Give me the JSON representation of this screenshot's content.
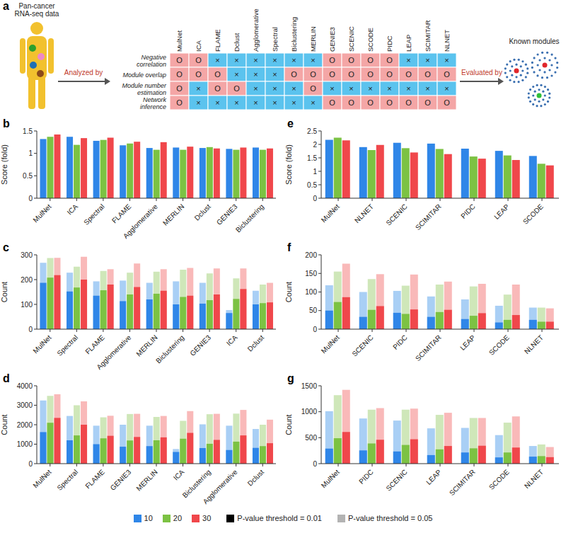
{
  "diagram": {
    "panel": "a",
    "source": "Pan-cancer RNA-seq data",
    "arrow_left": "Analyzed by",
    "arrow_right": "Evaluated by",
    "target": "Known modules",
    "methods": [
      "MulNet",
      "ICA",
      "FLAME",
      "Dclust",
      "Agglomerative",
      "Spectral",
      "Biclustering",
      "MERLIN",
      "GENIE3",
      "SCENIC",
      "SCODE",
      "PIDC",
      "LEAP",
      "SCIMITAR",
      "NLNET"
    ],
    "cell_colors": {
      "O": "#f4a6a6",
      "×": "#5bc3ee"
    },
    "rows": [
      {
        "name": "Negative correlation",
        "cells": [
          "O",
          "O",
          "×",
          "×",
          "×",
          "×",
          "×",
          "×",
          "O",
          "O",
          "O",
          "O",
          "×",
          "×",
          "×"
        ]
      },
      {
        "name": "Module overlap",
        "cells": [
          "O",
          "O",
          "O",
          "×",
          "×",
          "×",
          "O",
          "O",
          "O",
          "O",
          "O",
          "O",
          "O",
          "O",
          "O"
        ]
      },
      {
        "name": "Module number estimation",
        "cells": [
          "O",
          "×",
          "O",
          "O",
          "×",
          "×",
          "×",
          "O",
          "×",
          "×",
          "×",
          "×",
          "×",
          "×",
          "×"
        ]
      },
      {
        "name": "Network inference",
        "cells": [
          "O",
          "×",
          "×",
          "×",
          "×",
          "×",
          "×",
          "×",
          "O",
          "O",
          "O",
          "O",
          "O",
          "O",
          "O"
        ]
      }
    ]
  },
  "legend_items": [
    {
      "label": "P-value threshold = 0.01",
      "color": "#000000"
    },
    {
      "label": "P-value threshold = 0.05",
      "color": "#b3b3b3"
    }
  ],
  "chart_data": [
    {
      "panel": "b",
      "type": "bar",
      "y_label": "Score (fold)",
      "categories": [
        "MulNet",
        "ICA",
        "Spectral",
        "FLAME",
        "Agglomerative",
        "MERLIN",
        "Dclust",
        "GENIE3",
        "Biclustering"
      ],
      "ylim": [
        0,
        1.5
      ],
      "yticks": [
        0,
        0.5,
        1,
        1.5
      ],
      "series": [
        {
          "name": "10",
          "color": "#2f86e8",
          "values": [
            1.32,
            1.37,
            1.28,
            1.18,
            1.12,
            1.13,
            1.12,
            1.1,
            1.13
          ]
        },
        {
          "name": "20",
          "color": "#7cc243",
          "values": [
            1.37,
            1.19,
            1.3,
            1.22,
            1.08,
            1.08,
            1.14,
            1.08,
            1.08
          ]
        },
        {
          "name": "30",
          "color": "#f0474b",
          "values": [
            1.42,
            1.34,
            1.35,
            1.26,
            1.25,
            1.15,
            1.11,
            1.13,
            1.11
          ]
        }
      ]
    },
    {
      "panel": "c",
      "type": "bar",
      "y_label": "Count",
      "categories": [
        "MulNet",
        "Spectral",
        "FLAME",
        "Agglomerative",
        "MERLIN",
        "Biclustering",
        "GENIE3",
        "ICA",
        "Dclust"
      ],
      "ylim": [
        0,
        300
      ],
      "yticks": [
        0,
        100,
        200,
        300
      ],
      "series": [
        {
          "name": "10",
          "color": "#2f86e8",
          "color_p005": "#a9cff5",
          "values": [
            187,
            152,
            135,
            113,
            120,
            100,
            103,
            65,
            100
          ],
          "values_p005": [
            268,
            228,
            193,
            196,
            187,
            193,
            187,
            77,
            155
          ]
        },
        {
          "name": "20",
          "color": "#7cc243",
          "color_p005": "#cfe7b9",
          "values": [
            208,
            168,
            157,
            140,
            143,
            130,
            117,
            122,
            105
          ],
          "values_p005": [
            287,
            252,
            235,
            228,
            232,
            240,
            225,
            205,
            180
          ]
        },
        {
          "name": "30",
          "color": "#f0474b",
          "color_p005": "#f9b9b9",
          "values": [
            218,
            200,
            180,
            170,
            155,
            135,
            140,
            162,
            108
          ],
          "values_p005": [
            288,
            292,
            242,
            265,
            242,
            247,
            245,
            245,
            187
          ]
        }
      ]
    },
    {
      "panel": "d",
      "type": "bar",
      "y_label": "Count",
      "categories": [
        "MulNet",
        "Spectral",
        "FLAME",
        "GENIE3",
        "MERLIN",
        "ICA",
        "Biclustering",
        "Agglomerative",
        "Dclust"
      ],
      "ylim": [
        0,
        4000
      ],
      "yticks": [
        0,
        1000,
        2000,
        3000,
        4000
      ],
      "series": [
        {
          "name": "10",
          "color": "#2f86e8",
          "color_p005": "#a9cff5",
          "values": [
            1620,
            1200,
            1000,
            870,
            900,
            600,
            800,
            700,
            810
          ],
          "values_p005": [
            3250,
            2450,
            1950,
            2000,
            1950,
            750,
            2020,
            1950,
            1780
          ]
        },
        {
          "name": "20",
          "color": "#7cc243",
          "color_p005": "#cfe7b9",
          "values": [
            2100,
            1450,
            1300,
            1190,
            1200,
            1280,
            1020,
            1130,
            900
          ],
          "values_p005": [
            3480,
            3000,
            2380,
            2550,
            2400,
            2200,
            2540,
            2570,
            2000
          ]
        },
        {
          "name": "30",
          "color": "#f0474b",
          "color_p005": "#f9b9b9",
          "values": [
            2350,
            2000,
            1430,
            1370,
            1350,
            1580,
            1220,
            1450,
            1050
          ],
          "values_p005": [
            3560,
            3200,
            2460,
            2560,
            2450,
            2700,
            2560,
            2760,
            2260
          ]
        }
      ]
    },
    {
      "panel": "e",
      "type": "bar",
      "y_label": "Score (fold)",
      "categories": [
        "MulNet",
        "NLNET",
        "SCENIC",
        "SCIMITAR",
        "PIDC",
        "LEAP",
        "SCODE"
      ],
      "ylim": [
        0,
        2.5
      ],
      "yticks": [
        0,
        0.5,
        1,
        1.5,
        2,
        2.5
      ],
      "series": [
        {
          "name": "10",
          "color": "#2f86e8",
          "values": [
            2.17,
            1.9,
            2.06,
            2.03,
            1.84,
            1.76,
            1.57
          ]
        },
        {
          "name": "20",
          "color": "#7cc243",
          "values": [
            2.25,
            1.79,
            1.86,
            1.83,
            1.55,
            1.59,
            1.28
          ]
        },
        {
          "name": "30",
          "color": "#f0474b",
          "values": [
            2.15,
            1.98,
            1.7,
            1.64,
            1.47,
            1.42,
            1.22
          ]
        }
      ]
    },
    {
      "panel": "f",
      "type": "bar",
      "y_label": "Count",
      "categories": [
        "MulNet",
        "SCENIC",
        "PIDC",
        "SCIMITAR",
        "LEAP",
        "SCODE",
        "NLNET"
      ],
      "ylim": [
        0,
        200
      ],
      "yticks": [
        0,
        50,
        100,
        150,
        200
      ],
      "series": [
        {
          "name": "10",
          "color": "#2f86e8",
          "color_p005": "#a9cff5",
          "values": [
            50,
            33,
            44,
            33,
            27,
            18,
            25
          ],
          "values_p005": [
            118,
            100,
            103,
            88,
            80,
            63,
            58
          ]
        },
        {
          "name": "20",
          "color": "#7cc243",
          "color_p005": "#cfe7b9",
          "values": [
            73,
            52,
            41,
            46,
            36,
            25,
            20
          ],
          "values_p005": [
            155,
            135,
            117,
            120,
            115,
            93,
            58
          ]
        },
        {
          "name": "30",
          "color": "#f0474b",
          "color_p005": "#f9b9b9",
          "values": [
            86,
            62,
            53,
            52,
            43,
            38,
            20
          ],
          "values_p005": [
            176,
            148,
            147,
            128,
            122,
            120,
            56
          ]
        }
      ]
    },
    {
      "panel": "g",
      "type": "bar",
      "y_label": "Count",
      "categories": [
        "MulNet",
        "PIDC",
        "SCENIC",
        "LEAP",
        "SCIMITAR",
        "SCODE",
        "NLNET"
      ],
      "ylim": [
        0,
        1500
      ],
      "yticks": [
        0,
        500,
        1000,
        1500
      ],
      "series": [
        {
          "name": "10",
          "color": "#2f86e8",
          "color_p005": "#a9cff5",
          "values": [
            290,
            255,
            235,
            165,
            215,
            120,
            135
          ],
          "values_p005": [
            1010,
            870,
            830,
            680,
            690,
            550,
            340
          ]
        },
        {
          "name": "20",
          "color": "#7cc243",
          "color_p005": "#cfe7b9",
          "values": [
            490,
            390,
            360,
            275,
            295,
            215,
            145
          ],
          "values_p005": [
            1320,
            1040,
            1040,
            940,
            880,
            790,
            370
          ]
        },
        {
          "name": "30",
          "color": "#f0474b",
          "color_p005": "#f9b9b9",
          "values": [
            610,
            460,
            470,
            340,
            345,
            310,
            125
          ],
          "values_p005": [
            1420,
            1070,
            1060,
            980,
            880,
            910,
            320
          ]
        }
      ]
    }
  ]
}
